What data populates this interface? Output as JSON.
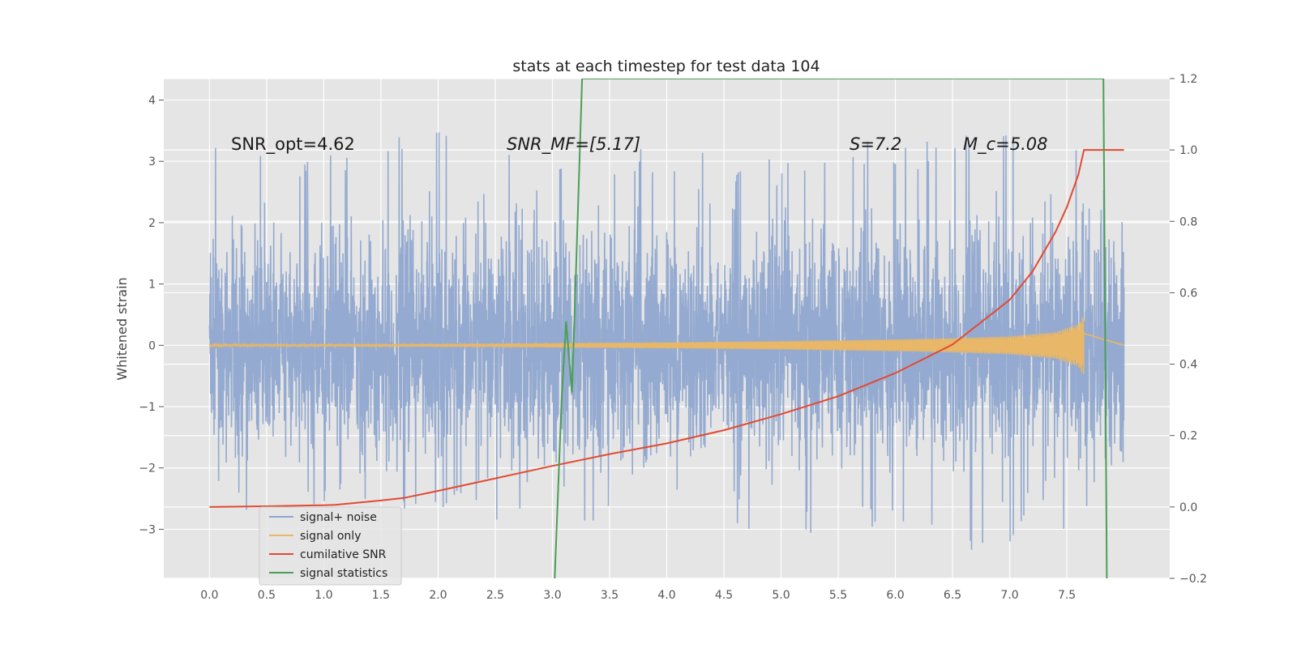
{
  "chart_data": {
    "type": "line",
    "title": "stats at each timestep for test data 104",
    "ylabel": "Whitened strain",
    "xlabel": "",
    "xlim": [
      -0.4,
      8.4
    ],
    "ylim": [
      -3.8,
      4.35
    ],
    "y2lim": [
      -0.2,
      1.2
    ],
    "x_ticks": [
      "0.0",
      "0.5",
      "1.0",
      "1.5",
      "2.0",
      "2.5",
      "3.0",
      "3.5",
      "4.0",
      "4.5",
      "5.0",
      "5.5",
      "6.0",
      "6.5",
      "7.0",
      "7.5"
    ],
    "y_ticks": [
      "−3",
      "−2",
      "−1",
      "0",
      "1",
      "2",
      "3",
      "4"
    ],
    "y2_ticks": [
      "−0.2",
      "0.0",
      "0.2",
      "0.4",
      "0.6",
      "0.8",
      "1.0",
      "1.2"
    ],
    "grid": true,
    "legend_position": "lower-left",
    "annotations": {
      "snr_opt": "SNR_opt=4.62",
      "snr_mf": "SNR_MF=[5.17]",
      "s_value": "S=7.2",
      "mc_value": "M_c=5.08"
    },
    "series": [
      {
        "name": "signal+ noise",
        "color": "#8fa7cf",
        "axis": "left",
        "x_range": [
          0.0,
          8.0
        ],
        "noise_std": 0.9,
        "envelope_top": [
          [
            0.0,
            4.0
          ],
          [
            0.5,
            3.2
          ],
          [
            1.0,
            3.1
          ],
          [
            2.0,
            3.55
          ],
          [
            3.0,
            3.0
          ],
          [
            4.0,
            3.3
          ],
          [
            5.0,
            3.0
          ],
          [
            5.5,
            3.6
          ],
          [
            6.0,
            3.3
          ],
          [
            7.0,
            3.5
          ],
          [
            7.5,
            3.5
          ],
          [
            8.0,
            2.2
          ]
        ],
        "envelope_bottom": [
          [
            0.0,
            -2.5
          ],
          [
            0.5,
            -2.9
          ],
          [
            1.0,
            -2.6
          ],
          [
            2.0,
            -2.7
          ],
          [
            3.0,
            -3.2
          ],
          [
            4.0,
            -2.9
          ],
          [
            5.0,
            -3.2
          ],
          [
            6.0,
            -2.9
          ],
          [
            6.3,
            -3.4
          ],
          [
            7.0,
            -3.3
          ],
          [
            7.5,
            -3.1
          ],
          [
            8.0,
            -2.85
          ]
        ]
      },
      {
        "name": "signal only",
        "color": "#e8b768",
        "axis": "left",
        "x_range": [
          0.0,
          7.65
        ],
        "amplitude_envelope": [
          [
            0.0,
            0.01
          ],
          [
            2.0,
            0.02
          ],
          [
            4.0,
            0.05
          ],
          [
            5.0,
            0.07
          ],
          [
            6.0,
            0.1
          ],
          [
            6.5,
            0.12
          ],
          [
            7.0,
            0.15
          ],
          [
            7.4,
            0.22
          ],
          [
            7.6,
            0.35
          ],
          [
            7.65,
            0.5
          ]
        ]
      },
      {
        "name": "cumilative SNR",
        "color": "#e24a33",
        "axis": "right",
        "x": [
          0.0,
          0.5,
          1.0,
          1.1,
          1.5,
          1.7,
          2.0,
          2.5,
          3.0,
          3.5,
          4.0,
          4.5,
          5.0,
          5.5,
          6.0,
          6.5,
          7.0,
          7.2,
          7.4,
          7.5,
          7.6,
          7.65,
          7.8,
          8.0
        ],
        "y": [
          0.0,
          0.002,
          0.005,
          0.006,
          0.018,
          0.025,
          0.045,
          0.08,
          0.115,
          0.148,
          0.178,
          0.215,
          0.26,
          0.31,
          0.375,
          0.455,
          0.58,
          0.66,
          0.77,
          0.84,
          0.93,
          1.0,
          1.0,
          1.0
        ]
      },
      {
        "name": "signal statistics",
        "color": "#4c9e57",
        "axis": "right",
        "x": [
          3.02,
          3.08,
          3.12,
          3.17,
          3.2,
          3.26,
          7.82,
          7.85
        ],
        "y": [
          -0.2,
          0.3,
          0.52,
          0.32,
          0.6,
          1.2,
          1.2,
          -0.2
        ]
      }
    ]
  }
}
